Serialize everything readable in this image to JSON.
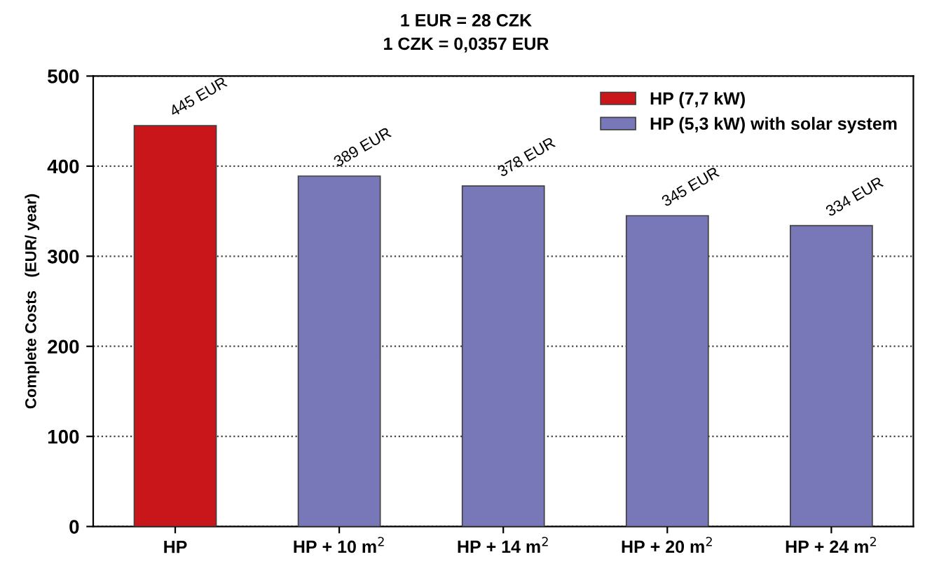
{
  "chart_data": {
    "type": "bar",
    "title": "1 EUR = 28 CZK",
    "subtitle": "1 CZK = 0,0357 EUR",
    "ylabel": "Complete Costs   (EUR/ year)",
    "categories": [
      "HP",
      "HP + 10 m$^{2}$",
      "HP + 14 m$^{2}$",
      "HP + 20 m$^{2}$",
      "HP + 24 m$^{2}$"
    ],
    "series": [
      {
        "name": "HP (7,7 kW)",
        "color": "#c8161a",
        "values": [
          445,
          null,
          null,
          null,
          null
        ],
        "value_labels": [
          "445 EUR",
          null,
          null,
          null,
          null
        ]
      },
      {
        "name": "HP (5,3 kW) with solar system",
        "color": "#7878b8",
        "values": [
          null,
          389,
          378,
          345,
          334
        ],
        "value_labels": [
          null,
          "389 EUR",
          "378 EUR",
          "345 EUR",
          "334 EUR"
        ]
      }
    ],
    "ylim": [
      0,
      500
    ],
    "yticks": [
      0,
      100,
      200,
      300,
      400,
      500
    ],
    "grid": "y",
    "legend": "top right"
  }
}
